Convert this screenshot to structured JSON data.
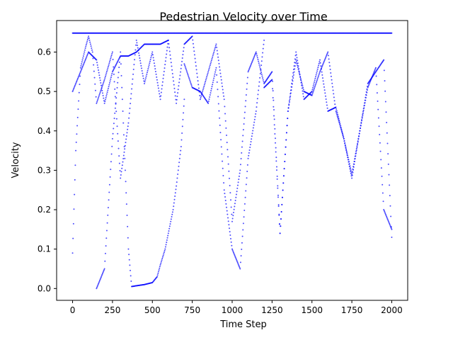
{
  "chart_data": {
    "type": "scatter",
    "title": "Pedestrian Velocity over Time",
    "xlabel": "Time Step",
    "ylabel": "Velocity",
    "xlim": [
      -100,
      2100
    ],
    "ylim": [
      -0.03,
      0.68
    ],
    "xticks": [
      0,
      250,
      500,
      750,
      1000,
      1250,
      1500,
      1750,
      2000
    ],
    "xtick_labels": [
      "0",
      "250",
      "500",
      "750",
      "1000",
      "1250",
      "1500",
      "1750",
      "2000"
    ],
    "yticks": [
      0.0,
      0.1,
      0.2,
      0.3,
      0.4,
      0.5,
      0.6
    ],
    "ytick_labels": [
      "0.0",
      "0.1",
      "0.2",
      "0.3",
      "0.4",
      "0.5",
      "0.6"
    ],
    "grid": false,
    "marker_color": "#0000ff",
    "series": [
      {
        "x": [
          0,
          500,
          1000,
          1500,
          2000
        ],
        "y": [
          0.648,
          0.648,
          0.648,
          0.648,
          0.648
        ]
      },
      {
        "x": [
          0,
          20,
          50,
          80,
          100,
          125,
          150,
          200,
          250,
          300,
          350,
          400,
          450,
          500,
          550,
          600,
          650,
          700,
          750,
          800,
          850,
          900,
          950,
          1000,
          1050,
          1100,
          1150,
          1200,
          1250,
          1300,
          1350,
          1400,
          1450,
          1500,
          1550,
          1600,
          1650,
          1700,
          1750,
          1800,
          1850,
          1900,
          1950,
          2000
        ],
        "y": [
          0.09,
          0.35,
          0.56,
          0.61,
          0.64,
          0.6,
          0.47,
          0.53,
          0.6,
          0.28,
          0.42,
          0.63,
          0.52,
          0.6,
          0.48,
          0.63,
          0.47,
          0.62,
          0.64,
          0.48,
          0.55,
          0.62,
          0.48,
          0.17,
          0.3,
          0.55,
          0.6,
          0.52,
          0.55,
          0.14,
          0.45,
          0.6,
          0.48,
          0.5,
          0.58,
          0.45,
          0.46,
          0.38,
          0.29,
          0.4,
          0.52,
          0.55,
          0.58,
          0.13
        ]
      },
      {
        "x": [
          0,
          100,
          150,
          200,
          250,
          300,
          350,
          400,
          450,
          500,
          550,
          600
        ],
        "y": [
          0.5,
          0.6,
          0.58,
          0.47,
          0.55,
          0.59,
          0.59,
          0.6,
          0.62,
          0.62,
          0.62,
          0.63
        ]
      },
      {
        "x": [
          150,
          200,
          250,
          300,
          330,
          350,
          370,
          400,
          450,
          500,
          530,
          550,
          580,
          600,
          630,
          650,
          680,
          700
        ],
        "y": [
          0.0,
          0.05,
          0.38,
          0.6,
          0.3,
          0.1,
          0.005,
          0.007,
          0.01,
          0.015,
          0.03,
          0.06,
          0.1,
          0.14,
          0.2,
          0.26,
          0.36,
          0.48
        ]
      },
      {
        "x": [
          700,
          750,
          800,
          850,
          900,
          950,
          1000,
          1050,
          1100,
          1150,
          1200
        ],
        "y": [
          0.57,
          0.51,
          0.5,
          0.47,
          0.56,
          0.25,
          0.1,
          0.05,
          0.33,
          0.45,
          0.63
        ]
      },
      {
        "x": [
          1200,
          1250,
          1300,
          1350,
          1400,
          1450,
          1500,
          1550,
          1600,
          1650,
          1700,
          1750,
          1800,
          1850,
          1900,
          1950,
          2000
        ],
        "y": [
          0.51,
          0.53,
          0.14,
          0.45,
          0.58,
          0.5,
          0.49,
          0.55,
          0.6,
          0.45,
          0.38,
          0.28,
          0.4,
          0.51,
          0.56,
          0.2,
          0.15
        ]
      }
    ]
  }
}
